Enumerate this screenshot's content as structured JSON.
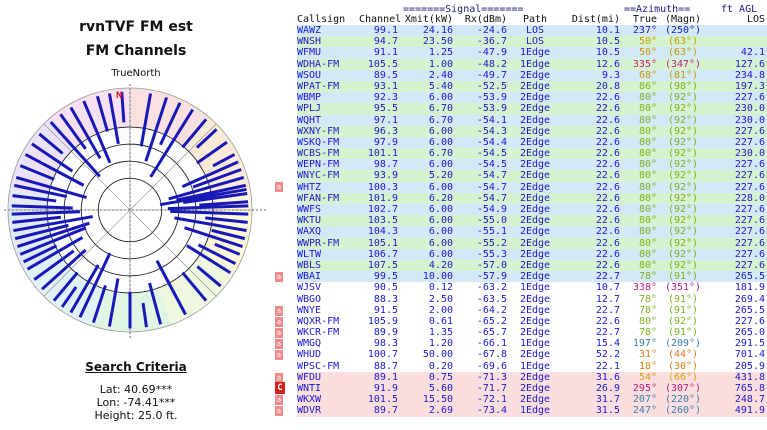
{
  "left_panel": {
    "title_line1": "rvnTVF FM est",
    "title_line2": "FM Channels",
    "north_label": "TrueNorth",
    "north_mark": "N",
    "search_title": "Search Criteria",
    "lat": "Lat: 40.69***",
    "lon": "Lon: -74.41***",
    "height": "Height: 25.0 ft."
  },
  "polar_chart": {
    "rings": 4,
    "spokes_deg": [
      0,
      45,
      90,
      135,
      180,
      225,
      270,
      315
    ],
    "needles": [
      {
        "az": 10,
        "len": 0.44
      },
      {
        "az": 18,
        "len": 0.55
      },
      {
        "az": 25,
        "len": 0.38
      },
      {
        "az": 32,
        "len": 0.65
      },
      {
        "az": 40,
        "len": 0.3
      },
      {
        "az": 47,
        "len": 0.22
      },
      {
        "az": 55,
        "len": 0.3
      },
      {
        "az": 62,
        "len": 0.2
      },
      {
        "az": 66,
        "len": 0.5
      },
      {
        "az": 70,
        "len": 0.42
      },
      {
        "az": 74,
        "len": 0.64
      },
      {
        "az": 78,
        "len": 0.58
      },
      {
        "az": 80,
        "len": 0.72
      },
      {
        "az": 82,
        "len": 0.53
      },
      {
        "az": 86,
        "len": 0.4
      },
      {
        "az": 88,
        "len": 0.66
      },
      {
        "az": 92,
        "len": 0.64
      },
      {
        "az": 96,
        "len": 0.35
      },
      {
        "az": 100,
        "len": 0.6
      },
      {
        "az": 104,
        "len": 0.28
      },
      {
        "az": 108,
        "len": 0.5
      },
      {
        "az": 112,
        "len": 0.22
      },
      {
        "az": 117,
        "len": 0.34
      },
      {
        "az": 122,
        "len": 0.42
      },
      {
        "az": 130,
        "len": 0.25
      },
      {
        "az": 140,
        "len": 0.3
      },
      {
        "az": 152,
        "len": 0.5
      },
      {
        "az": 165,
        "len": 0.35
      },
      {
        "az": 172,
        "len": 0.2
      },
      {
        "az": 180,
        "len": 0.3
      },
      {
        "az": 190,
        "len": 0.4
      },
      {
        "az": 198,
        "len": 0.32
      },
      {
        "az": 205,
        "len": 0.58
      },
      {
        "az": 210,
        "len": 0.45
      },
      {
        "az": 215,
        "len": 0.2
      },
      {
        "az": 220,
        "len": 0.3
      },
      {
        "az": 228,
        "len": 0.48
      },
      {
        "az": 234,
        "len": 0.4
      },
      {
        "az": 240,
        "len": 0.52
      },
      {
        "az": 244,
        "len": 0.3
      },
      {
        "az": 248,
        "len": 0.58
      },
      {
        "az": 252,
        "len": 0.62
      },
      {
        "az": 256,
        "len": 0.45
      },
      {
        "az": 260,
        "len": 0.66
      },
      {
        "az": 264,
        "len": 0.4
      },
      {
        "az": 268,
        "len": 0.56
      },
      {
        "az": 272,
        "len": 0.5
      },
      {
        "az": 277,
        "len": 0.36
      },
      {
        "az": 282,
        "len": 0.44
      },
      {
        "az": 286,
        "len": 0.6
      },
      {
        "az": 292,
        "len": 0.3
      },
      {
        "az": 298,
        "len": 0.54
      },
      {
        "az": 304,
        "len": 0.4
      },
      {
        "az": 310,
        "len": 0.25
      },
      {
        "az": 318,
        "len": 0.6
      },
      {
        "az": 324,
        "len": 0.35
      },
      {
        "az": 330,
        "len": 0.48
      },
      {
        "az": 337,
        "len": 0.55
      },
      {
        "az": 344,
        "len": 0.3
      },
      {
        "az": 350,
        "len": 0.42
      },
      {
        "az": 356,
        "len": 0.25
      }
    ]
  },
  "table": {
    "header_top": {
      "signal": "=======Signal=======",
      "azimuth": "==Azimuth==",
      "agl": "ft AGL"
    },
    "header": {
      "callsign": "Callsign",
      "channel": "Channel",
      "xmit": "Xmit(kW)",
      "rx": "Rx(dBm)",
      "path": "Path",
      "dist": "Dist(mi)",
      "true_az": "True",
      "magn": "(Magn)",
      "los": "LOS"
    },
    "rows": [
      {
        "cs": "WAWZ",
        "ch": "99.1",
        "xmit": "24.16",
        "rx": "-24.6",
        "path": "LOS",
        "dist": "10.1",
        "true": "237°",
        "magn": "(250°)",
        "agl": "",
        "color": "c-lightblue",
        "az_color": "#1a1ad0"
      },
      {
        "cs": "WNSH",
        "ch": "94.7",
        "xmit": "23.50",
        "rx": "-36.7",
        "path": "LOS",
        "dist": "10.5",
        "true": "50°",
        "magn": "(63°)",
        "agl": "",
        "color": "c-lightgreen",
        "az_color": "#c89a00"
      },
      {
        "cs": "WFMU",
        "ch": "91.1",
        "xmit": "1.25",
        "rx": "-47.9",
        "path": "1Edge",
        "dist": "10.5",
        "true": "50°",
        "magn": "(63°)",
        "agl": "42.1",
        "color": "c-lightblue",
        "az_color": "#c89a00"
      },
      {
        "cs": "WDHA-FM",
        "ch": "105.5",
        "xmit": "1.00",
        "rx": "-48.2",
        "path": "1Edge",
        "dist": "12.6",
        "true": "335°",
        "magn": "(347°)",
        "agl": "127.6",
        "color": "c-lightgreen",
        "az_color": "#c0207a"
      },
      {
        "cs": "WSOU",
        "ch": "89.5",
        "xmit": "2.40",
        "rx": "-49.7",
        "path": "2Edge",
        "dist": "9.3",
        "true": "68°",
        "magn": "(81°)",
        "agl": "234.8",
        "color": "c-lightblue",
        "az_color": "#c89a00"
      },
      {
        "cs": "WPAT-FM",
        "ch": "93.1",
        "xmit": "5.40",
        "rx": "-52.5",
        "path": "2Edge",
        "dist": "20.8",
        "true": "86°",
        "magn": "(98°)",
        "agl": "197.3",
        "color": "c-lightgreen",
        "az_color": "#7ab31a"
      },
      {
        "cs": "WBMP",
        "ch": "92.3",
        "xmit": "6.00",
        "rx": "-53.9",
        "path": "2Edge",
        "dist": "22.6",
        "true": "80°",
        "magn": "(92°)",
        "agl": "227.6",
        "color": "c-lightblue",
        "az_color": "#7ab31a"
      },
      {
        "cs": "WPLJ",
        "ch": "95.5",
        "xmit": "6.70",
        "rx": "-53.9",
        "path": "2Edge",
        "dist": "22.6",
        "true": "80°",
        "magn": "(92°)",
        "agl": "230.0",
        "color": "c-lightgreen",
        "az_color": "#7ab31a"
      },
      {
        "cs": "WQHT",
        "ch": "97.1",
        "xmit": "6.70",
        "rx": "-54.1",
        "path": "2Edge",
        "dist": "22.6",
        "true": "80°",
        "magn": "(92°)",
        "agl": "230.0",
        "color": "c-lightblue",
        "az_color": "#7ab31a"
      },
      {
        "cs": "WXNY-FM",
        "ch": "96.3",
        "xmit": "6.00",
        "rx": "-54.3",
        "path": "2Edge",
        "dist": "22.6",
        "true": "80°",
        "magn": "(92°)",
        "agl": "227.6",
        "color": "c-lightgreen",
        "az_color": "#7ab31a"
      },
      {
        "cs": "WSKQ-FM",
        "ch": "97.9",
        "xmit": "6.00",
        "rx": "-54.4",
        "path": "2Edge",
        "dist": "22.6",
        "true": "80°",
        "magn": "(92°)",
        "agl": "227.6",
        "color": "c-lightblue",
        "az_color": "#7ab31a"
      },
      {
        "cs": "WCBS-FM",
        "ch": "101.1",
        "xmit": "6.70",
        "rx": "-54.5",
        "path": "2Edge",
        "dist": "22.6",
        "true": "80°",
        "magn": "(92°)",
        "agl": "230.0",
        "color": "c-lightgreen",
        "az_color": "#7ab31a"
      },
      {
        "cs": "WEPN-FM",
        "ch": "98.7",
        "xmit": "6.00",
        "rx": "-54.5",
        "path": "2Edge",
        "dist": "22.6",
        "true": "80°",
        "magn": "(92°)",
        "agl": "227.6",
        "color": "c-lightblue",
        "az_color": "#7ab31a"
      },
      {
        "cs": "WNYC-FM",
        "ch": "93.9",
        "xmit": "5.20",
        "rx": "-54.7",
        "path": "2Edge",
        "dist": "22.6",
        "true": "80°",
        "magn": "(92°)",
        "agl": "227.6",
        "color": "c-lightgreen",
        "az_color": "#7ab31a"
      },
      {
        "cs": "WHTZ",
        "ch": "100.3",
        "xmit": "6.00",
        "rx": "-54.7",
        "path": "2Edge",
        "dist": "22.6",
        "true": "80°",
        "magn": "(92°)",
        "agl": "227.6",
        "color": "c-lightblue",
        "az_color": "#7ab31a"
      },
      {
        "cs": "WFAN-FM",
        "ch": "101.9",
        "xmit": "6.20",
        "rx": "-54.7",
        "path": "2Edge",
        "dist": "22.6",
        "true": "80°",
        "magn": "(92°)",
        "agl": "228.0",
        "color": "c-lightgreen",
        "az_color": "#7ab31a"
      },
      {
        "cs": "WWFS",
        "ch": "102.7",
        "xmit": "6.00",
        "rx": "-54.9",
        "path": "2Edge",
        "dist": "22.6",
        "true": "80°",
        "magn": "(92°)",
        "agl": "227.6",
        "color": "c-lightblue",
        "az_color": "#7ab31a"
      },
      {
        "cs": "WKTU",
        "ch": "103.5",
        "xmit": "6.00",
        "rx": "-55.0",
        "path": "2Edge",
        "dist": "22.6",
        "true": "80°",
        "magn": "(92°)",
        "agl": "227.6",
        "color": "c-lightgreen",
        "az_color": "#7ab31a"
      },
      {
        "cs": "WAXQ",
        "ch": "104.3",
        "xmit": "6.00",
        "rx": "-55.1",
        "path": "2Edge",
        "dist": "22.6",
        "true": "80°",
        "magn": "(92°)",
        "agl": "227.6",
        "color": "c-lightblue",
        "az_color": "#7ab31a"
      },
      {
        "cs": "WWPR-FM",
        "ch": "105.1",
        "xmit": "6.00",
        "rx": "-55.2",
        "path": "2Edge",
        "dist": "22.6",
        "true": "80°",
        "magn": "(92°)",
        "agl": "227.6",
        "color": "c-lightgreen",
        "az_color": "#7ab31a"
      },
      {
        "cs": "WLTW",
        "ch": "106.7",
        "xmit": "6.00",
        "rx": "-55.3",
        "path": "2Edge",
        "dist": "22.6",
        "true": "80°",
        "magn": "(92°)",
        "agl": "227.6",
        "color": "c-lightblue",
        "az_color": "#7ab31a"
      },
      {
        "cs": "WBLS",
        "ch": "107.5",
        "xmit": "4.20",
        "rx": "-57.0",
        "path": "2Edge",
        "dist": "22.6",
        "true": "80°",
        "magn": "(92°)",
        "agl": "227.6",
        "color": "c-lightgreen",
        "az_color": "#7ab31a"
      },
      {
        "cs": "WBAI",
        "ch": "99.5",
        "xmit": "10.00",
        "rx": "-57.9",
        "path": "2Edge",
        "dist": "22.7",
        "true": "78°",
        "magn": "(91°)",
        "agl": "265.5",
        "color": "c-lightblue",
        "az_color": "#7ab31a"
      },
      {
        "cs": "WJSV",
        "ch": "90.5",
        "xmit": "0.12",
        "rx": "-63.2",
        "path": "1Edge",
        "dist": "10.7",
        "true": "338°",
        "magn": "(351°)",
        "agl": "181.9",
        "color": "c-white",
        "az_color": "#c0207a"
      },
      {
        "cs": "WBGO",
        "ch": "88.3",
        "xmit": "2.50",
        "rx": "-63.5",
        "path": "2Edge",
        "dist": "12.7",
        "true": "78°",
        "magn": "(91°)",
        "agl": "269.4",
        "color": "c-white",
        "az_color": "#7ab31a"
      },
      {
        "cs": "WNYE",
        "ch": "91.5",
        "xmit": "2.00",
        "rx": "-64.2",
        "path": "2Edge",
        "dist": "22.7",
        "true": "78°",
        "magn": "(91°)",
        "agl": "265.5",
        "color": "c-white",
        "az_color": "#7ab31a"
      },
      {
        "cs": "WQXR-FM",
        "ch": "105.9",
        "xmit": "0.61",
        "rx": "-65.2",
        "path": "2Edge",
        "dist": "22.6",
        "true": "80°",
        "magn": "(92°)",
        "agl": "227.6",
        "color": "c-white",
        "az_color": "#7ab31a"
      },
      {
        "cs": "WKCR-FM",
        "ch": "89.9",
        "xmit": "1.35",
        "rx": "-65.7",
        "path": "2Edge",
        "dist": "22.7",
        "true": "78°",
        "magn": "(91°)",
        "agl": "265.0",
        "color": "c-white",
        "az_color": "#7ab31a"
      },
      {
        "cs": "WMGQ",
        "ch": "98.3",
        "xmit": "1.20",
        "rx": "-66.1",
        "path": "1Edge",
        "dist": "15.4",
        "true": "197°",
        "magn": "(209°)",
        "agl": "291.5",
        "color": "c-white",
        "az_color": "#3b7fb0"
      },
      {
        "cs": "WHUD",
        "ch": "100.7",
        "xmit": "50.00",
        "rx": "-67.8",
        "path": "2Edge",
        "dist": "52.2",
        "true": "31°",
        "magn": "(44°)",
        "agl": "701.4",
        "color": "c-white",
        "az_color": "#d97a14"
      },
      {
        "cs": "WPSC-FM",
        "ch": "88.7",
        "xmit": "0.20",
        "rx": "-69.6",
        "path": "1Edge",
        "dist": "22.1",
        "true": "18°",
        "magn": "(30°)",
        "agl": "205.9",
        "color": "c-white",
        "az_color": "#d97a14"
      },
      {
        "cs": "WFDU",
        "ch": "89.1",
        "xmit": "0.75",
        "rx": "-71.3",
        "path": "2Edge",
        "dist": "31.6",
        "true": "54°",
        "magn": "(66°)",
        "agl": "431.8",
        "color": "c-pink",
        "az_color": "#d9a014"
      },
      {
        "cs": "WNTI",
        "ch": "91.9",
        "xmit": "5.60",
        "rx": "-71.7",
        "path": "2Edge",
        "dist": "26.9",
        "true": "295°",
        "magn": "(307°)",
        "agl": "765.8",
        "color": "c-pink",
        "az_color": "#c0207a"
      },
      {
        "cs": "WKXW",
        "ch": "101.5",
        "xmit": "15.50",
        "rx": "-72.1",
        "path": "2Edge",
        "dist": "31.7",
        "true": "207°",
        "magn": "(220°)",
        "agl": "248.7",
        "color": "c-pink",
        "az_color": "#3b7fb0"
      },
      {
        "cs": "WDVR",
        "ch": "89.7",
        "xmit": "2.69",
        "rx": "-73.4",
        "path": "1Edge",
        "dist": "31.5",
        "true": "247°",
        "magn": "(260°)",
        "agl": "491.9",
        "color": "c-pink",
        "az_color": "#3b7fb0"
      }
    ]
  },
  "row_markers": [
    {
      "row": 14,
      "label": "a"
    },
    {
      "row": 22,
      "label": "a"
    },
    {
      "row": 25,
      "label": "a"
    },
    {
      "row": 26,
      "label": "a"
    },
    {
      "row": 27,
      "label": "a"
    },
    {
      "row": 28,
      "label": "a"
    },
    {
      "row": 29,
      "label": "a"
    },
    {
      "row": 31,
      "label": "a"
    },
    {
      "row": 32,
      "label": "C"
    },
    {
      "row": 33,
      "label": "a"
    },
    {
      "row": 34,
      "label": "a"
    }
  ]
}
